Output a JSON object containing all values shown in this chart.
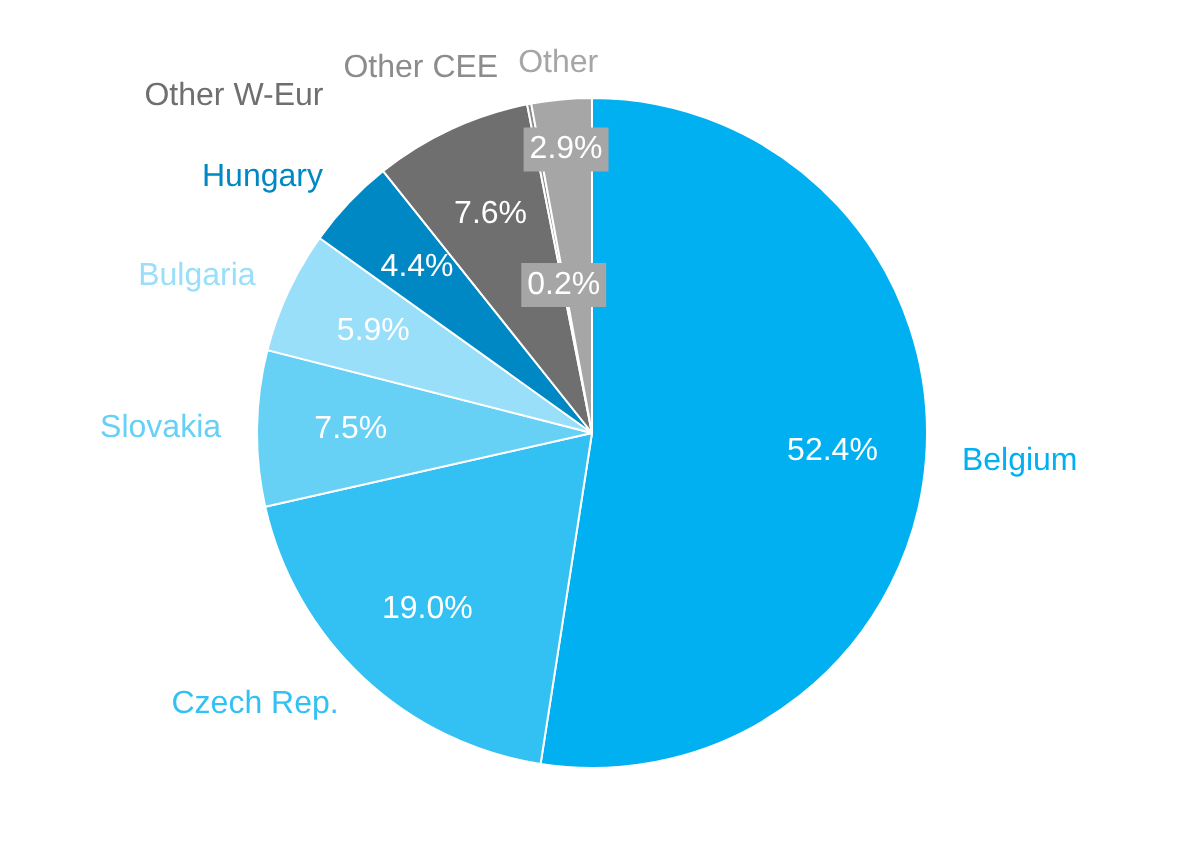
{
  "chart_data": {
    "type": "pie",
    "categories": [
      "Belgium",
      "Czech Rep.",
      "Slovakia",
      "Bulgaria",
      "Hungary",
      "Other W-Eur",
      "Other CEE",
      "Other"
    ],
    "values": [
      52.4,
      19.0,
      7.5,
      5.9,
      4.4,
      7.6,
      0.2,
      2.9
    ],
    "value_labels": [
      "52.4%",
      "19.0%",
      "7.5%",
      "5.9%",
      "4.4%",
      "7.6%",
      "0.2%",
      "2.9%"
    ],
    "colors": [
      "#00b0f0",
      "#33c0f3",
      "#66d0f5",
      "#99dff9",
      "#0088c4",
      "#6f6f6f",
      "#8c8c8c",
      "#a6a6a6"
    ],
    "legend": false
  }
}
